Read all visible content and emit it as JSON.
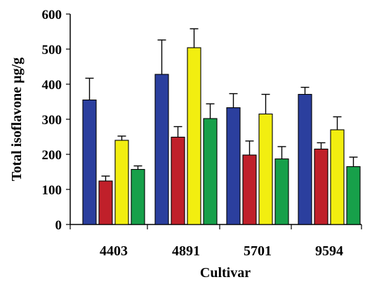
{
  "chart_data": {
    "type": "bar",
    "title": "",
    "xlabel": "Cultivar",
    "ylabel": "Total isoflavone µg/g",
    "categories": [
      "4403",
      "4891",
      "5701",
      "9594"
    ],
    "ylim": [
      0,
      600
    ],
    "yticks": [
      0,
      100,
      200,
      300,
      400,
      500,
      600
    ],
    "grid": false,
    "legend": "none",
    "series": [
      {
        "color": "#2b3f9e",
        "values": [
          355,
          428,
          333,
          371
        ],
        "errors": [
          62,
          98,
          40,
          20
        ]
      },
      {
        "color": "#c0202a",
        "values": [
          124,
          249,
          198,
          215
        ],
        "errors": [
          14,
          30,
          40,
          18
        ]
      },
      {
        "color": "#f2ee10",
        "values": [
          240,
          504,
          315,
          270
        ],
        "errors": [
          12,
          54,
          56,
          37
        ]
      },
      {
        "color": "#17a04a",
        "values": [
          157,
          302,
          187,
          165
        ],
        "errors": [
          10,
          42,
          35,
          27
        ]
      }
    ]
  }
}
